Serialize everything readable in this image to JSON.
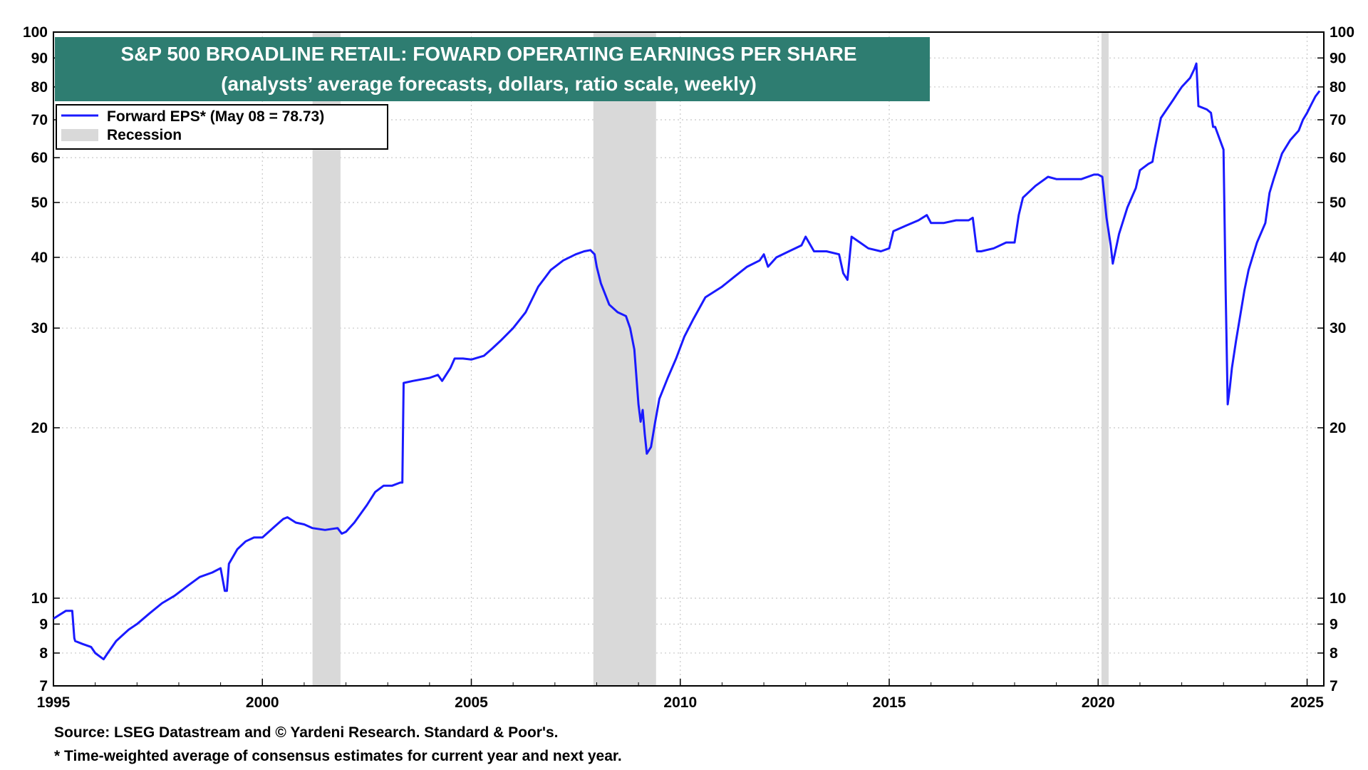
{
  "chart_data": {
    "type": "line",
    "title": "S&P 500 BROADLINE RETAIL: FOWARD OPERATING EARNINGS PER SHARE",
    "subtitle": "(analysts’ average forecasts, dollars, ratio scale, weekly)",
    "xlabel": "",
    "ylabel": "",
    "scale": "log",
    "xlim": [
      1995.0,
      2025.4
    ],
    "ylim": [
      7,
      100
    ],
    "x_ticks": [
      "1995",
      "2000",
      "2005",
      "2010",
      "2015",
      "2020",
      "2025"
    ],
    "y_ticks": [
      "7",
      "8",
      "9",
      "10",
      "20",
      "30",
      "40",
      "50",
      "60",
      "70",
      "80",
      "90",
      "100"
    ],
    "grid": true,
    "legend_position": "top-left",
    "colors": {
      "line": "#1a1aff",
      "recession": "#d9d9d9",
      "title_bg": "#2e7d71"
    },
    "legend": [
      {
        "label": "Forward EPS* (May 08 = 78.73)",
        "kind": "line"
      },
      {
        "label": "Recession",
        "kind": "band"
      }
    ],
    "recessions": [
      [
        2001.2,
        2001.87
      ],
      [
        2007.92,
        2009.42
      ],
      [
        2020.08,
        2020.25
      ]
    ],
    "series": [
      {
        "name": "Forward EPS*",
        "x": [
          1995.0,
          1995.1,
          1995.3,
          1995.45,
          1995.5,
          1995.52,
          1995.7,
          1995.9,
          1996.0,
          1996.2,
          1996.3,
          1996.5,
          1996.8,
          1997.0,
          1997.3,
          1997.6,
          1997.9,
          1998.2,
          1998.5,
          1998.8,
          1999.0,
          1999.1,
          1999.15,
          1999.2,
          1999.4,
          1999.6,
          1999.8,
          2000.0,
          2000.3,
          2000.5,
          2000.6,
          2000.8,
          2001.0,
          2001.2,
          2001.5,
          2001.8,
          2001.9,
          2002.0,
          2002.2,
          2002.5,
          2002.7,
          2002.9,
          2003.1,
          2003.3,
          2003.35,
          2003.38,
          2003.6,
          2004.0,
          2004.2,
          2004.3,
          2004.5,
          2004.6,
          2004.8,
          2005.0,
          2005.3,
          2005.5,
          2005.7,
          2006.0,
          2006.3,
          2006.6,
          2006.9,
          2007.2,
          2007.5,
          2007.7,
          2007.85,
          2007.95,
          2008.0,
          2008.1,
          2008.3,
          2008.5,
          2008.7,
          2008.8,
          2008.9,
          2009.0,
          2009.05,
          2009.1,
          2009.15,
          2009.2,
          2009.3,
          2009.4,
          2009.5,
          2009.7,
          2009.9,
          2010.1,
          2010.3,
          2010.6,
          2011.0,
          2011.3,
          2011.6,
          2011.9,
          2012.0,
          2012.1,
          2012.3,
          2012.6,
          2012.9,
          2013.0,
          2013.2,
          2013.5,
          2013.8,
          2013.9,
          2014.0,
          2014.1,
          2014.3,
          2014.5,
          2014.8,
          2015.0,
          2015.1,
          2015.4,
          2015.7,
          2015.9,
          2016.0,
          2016.3,
          2016.6,
          2016.9,
          2017.0,
          2017.1,
          2017.2,
          2017.5,
          2017.8,
          2018.0,
          2018.1,
          2018.2,
          2018.5,
          2018.8,
          2019.0,
          2019.3,
          2019.6,
          2019.9,
          2020.0,
          2020.1,
          2020.2,
          2020.3,
          2020.35,
          2020.5,
          2020.7,
          2020.9,
          2021.0,
          2021.2,
          2021.3,
          2021.35,
          2021.5,
          2021.8,
          2021.9,
          2022.0,
          2022.2,
          2022.3,
          2022.35,
          2022.4,
          2022.6,
          2022.7,
          2022.75,
          2022.8,
          2023.0,
          2023.05,
          2023.1,
          2023.15,
          2023.2,
          2023.3,
          2023.5,
          2023.6,
          2023.8,
          2024.0,
          2024.1,
          2024.2,
          2024.4,
          2024.6,
          2024.8,
          2024.9,
          2025.0,
          2025.1,
          2025.2,
          2025.3
        ],
        "values": [
          9.2,
          9.3,
          9.5,
          9.5,
          8.5,
          8.4,
          8.3,
          8.2,
          8.0,
          7.8,
          8.0,
          8.4,
          8.8,
          9.0,
          9.4,
          9.8,
          10.1,
          10.5,
          10.9,
          11.1,
          11.3,
          10.3,
          10.3,
          11.5,
          12.2,
          12.6,
          12.8,
          12.8,
          13.4,
          13.8,
          13.9,
          13.6,
          13.5,
          13.3,
          13.2,
          13.3,
          13.0,
          13.1,
          13.6,
          14.6,
          15.4,
          15.8,
          15.8,
          16.0,
          16.0,
          24.0,
          24.2,
          24.5,
          24.8,
          24.2,
          25.5,
          26.5,
          26.5,
          26.4,
          26.8,
          27.6,
          28.5,
          30.0,
          32.0,
          35.5,
          38.0,
          39.5,
          40.5,
          41.0,
          41.2,
          40.5,
          38.5,
          36.0,
          33.0,
          32.0,
          31.5,
          30.0,
          27.5,
          22.0,
          20.5,
          21.5,
          19.5,
          18.0,
          18.5,
          20.5,
          22.5,
          24.5,
          26.5,
          29.0,
          31.0,
          34.0,
          35.5,
          37.0,
          38.5,
          39.5,
          40.5,
          38.5,
          40.0,
          41.0,
          42.0,
          43.5,
          41.0,
          41.0,
          40.5,
          37.5,
          36.5,
          43.5,
          42.5,
          41.5,
          41.0,
          41.5,
          44.5,
          45.5,
          46.5,
          47.5,
          46.0,
          46.0,
          46.5,
          46.5,
          47.0,
          41.0,
          41.0,
          41.5,
          42.5,
          42.5,
          47.5,
          51.0,
          53.5,
          55.5,
          55.0,
          55.0,
          55.0,
          56.0,
          56.0,
          55.5,
          47.0,
          42.0,
          39.0,
          44.0,
          49.0,
          53.0,
          57.0,
          58.5,
          59.0,
          62.0,
          70.5,
          76.0,
          78.0,
          80.0,
          83.0,
          86.0,
          88.0,
          74.0,
          73.0,
          72.0,
          68.0,
          68.0,
          62.0,
          35.0,
          22.0,
          23.5,
          25.5,
          28.5,
          35.0,
          38.0,
          42.5,
          46.0,
          52.0,
          55.0,
          61.0,
          64.5,
          67.0,
          70.0,
          72.0,
          74.5,
          77.0,
          78.73
        ]
      }
    ]
  },
  "source_note": "Source: LSEG Datastream and © Yardeni Research. Standard & Poor's.",
  "footnote": "* Time-weighted average of consensus estimates for current year and next year."
}
